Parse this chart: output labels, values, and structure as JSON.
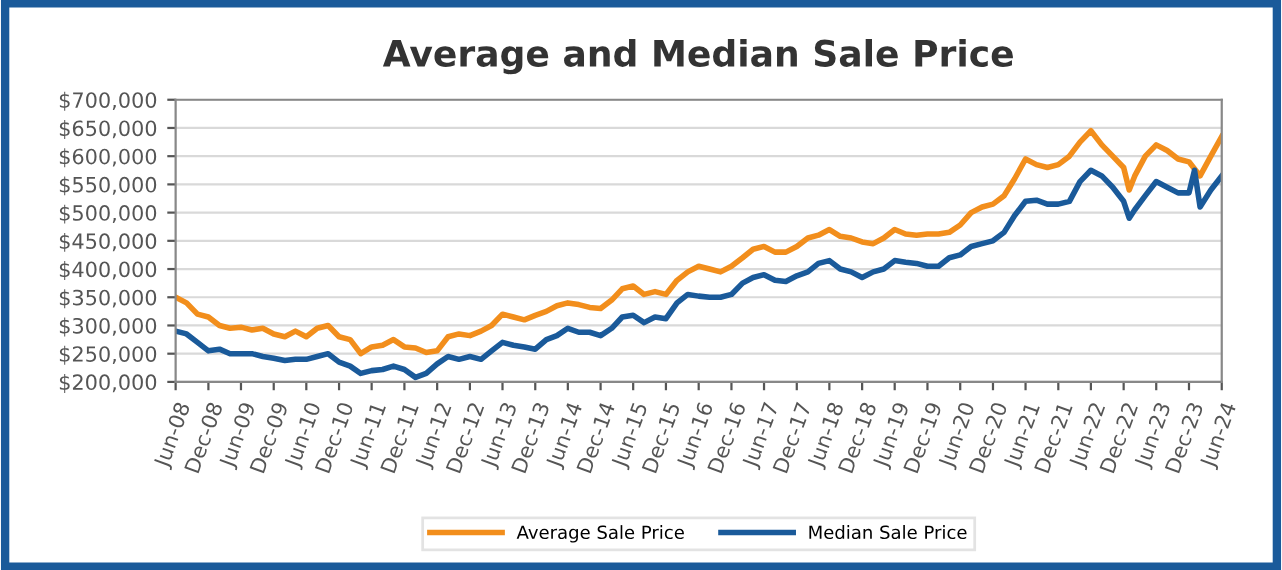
{
  "chart_data": {
    "type": "line",
    "title": "Average and Median Sale Price",
    "ylim": [
      200000,
      700000
    ],
    "yticks": [
      {
        "value": 200000,
        "label": "$200,000"
      },
      {
        "value": 250000,
        "label": "$250,000"
      },
      {
        "value": 300000,
        "label": "$300,000"
      },
      {
        "value": 350000,
        "label": "$350,000"
      },
      {
        "value": 400000,
        "label": "$400,000"
      },
      {
        "value": 450000,
        "label": "$450,000"
      },
      {
        "value": 500000,
        "label": "$500,000"
      },
      {
        "value": 550000,
        "label": "$550,000"
      },
      {
        "value": 600000,
        "label": "$600,000"
      },
      {
        "value": 650000,
        "label": "$650,000"
      },
      {
        "value": 700000,
        "label": "$700,000"
      }
    ],
    "xlim": [
      "2008-06",
      "2024-06"
    ],
    "xticks": [
      {
        "value": "2008-06",
        "label": "Jun-08"
      },
      {
        "value": "2008-12",
        "label": "Dec-08"
      },
      {
        "value": "2009-06",
        "label": "Jun-09"
      },
      {
        "value": "2009-12",
        "label": "Dec-09"
      },
      {
        "value": "2010-06",
        "label": "Jun-10"
      },
      {
        "value": "2010-12",
        "label": "Dec-10"
      },
      {
        "value": "2011-06",
        "label": "Jun-11"
      },
      {
        "value": "2011-12",
        "label": "Dec-11"
      },
      {
        "value": "2012-06",
        "label": "Jun-12"
      },
      {
        "value": "2012-12",
        "label": "Dec-12"
      },
      {
        "value": "2013-06",
        "label": "Jun-13"
      },
      {
        "value": "2013-12",
        "label": "Dec-13"
      },
      {
        "value": "2014-06",
        "label": "Jun-14"
      },
      {
        "value": "2014-12",
        "label": "Dec-14"
      },
      {
        "value": "2015-06",
        "label": "Jun-15"
      },
      {
        "value": "2015-12",
        "label": "Dec-15"
      },
      {
        "value": "2016-06",
        "label": "Jun-16"
      },
      {
        "value": "2016-12",
        "label": "Dec-16"
      },
      {
        "value": "2017-06",
        "label": "Jun-17"
      },
      {
        "value": "2017-12",
        "label": "Dec-17"
      },
      {
        "value": "2018-06",
        "label": "Jun-18"
      },
      {
        "value": "2018-12",
        "label": "Dec-18"
      },
      {
        "value": "2019-06",
        "label": "Jun-19"
      },
      {
        "value": "2019-12",
        "label": "Dec-19"
      },
      {
        "value": "2020-06",
        "label": "Jun-20"
      },
      {
        "value": "2020-12",
        "label": "Dec-20"
      },
      {
        "value": "2021-06",
        "label": "Jun-21"
      },
      {
        "value": "2021-12",
        "label": "Dec-21"
      },
      {
        "value": "2022-06",
        "label": "Jun-22"
      },
      {
        "value": "2022-12",
        "label": "Dec-22"
      },
      {
        "value": "2023-06",
        "label": "Jun-23"
      },
      {
        "value": "2023-12",
        "label": "Dec-23"
      },
      {
        "value": "2024-06",
        "label": "Jun-24"
      }
    ],
    "grid": "y",
    "legend": "bottom",
    "marker": "none",
    "line_style": "solid",
    "series": [
      {
        "name": "Average Sale Price",
        "color": "#f28e1c",
        "x": [
          "2008-06",
          "2008-08",
          "2008-10",
          "2008-12",
          "2009-02",
          "2009-04",
          "2009-06",
          "2009-08",
          "2009-10",
          "2009-12",
          "2010-02",
          "2010-04",
          "2010-06",
          "2010-08",
          "2010-10",
          "2010-12",
          "2011-02",
          "2011-04",
          "2011-06",
          "2011-08",
          "2011-10",
          "2011-12",
          "2012-02",
          "2012-04",
          "2012-06",
          "2012-08",
          "2012-10",
          "2012-12",
          "2013-02",
          "2013-04",
          "2013-06",
          "2013-08",
          "2013-10",
          "2013-12",
          "2014-02",
          "2014-04",
          "2014-06",
          "2014-08",
          "2014-10",
          "2014-12",
          "2015-02",
          "2015-04",
          "2015-06",
          "2015-08",
          "2015-10",
          "2015-12",
          "2016-02",
          "2016-04",
          "2016-06",
          "2016-08",
          "2016-10",
          "2016-12",
          "2017-02",
          "2017-04",
          "2017-06",
          "2017-08",
          "2017-10",
          "2017-12",
          "2018-02",
          "2018-04",
          "2018-06",
          "2018-08",
          "2018-10",
          "2018-12",
          "2019-02",
          "2019-04",
          "2019-06",
          "2019-08",
          "2019-10",
          "2019-12",
          "2020-02",
          "2020-04",
          "2020-06",
          "2020-08",
          "2020-10",
          "2020-12",
          "2021-02",
          "2021-04",
          "2021-06",
          "2021-08",
          "2021-10",
          "2021-12",
          "2022-02",
          "2022-04",
          "2022-06",
          "2022-08",
          "2022-10",
          "2022-12",
          "2023-01",
          "2023-02",
          "2023-04",
          "2023-06",
          "2023-08",
          "2023-10",
          "2023-12",
          "2024-02",
          "2024-04",
          "2024-06"
        ],
        "values": [
          350000,
          340000,
          320000,
          315000,
          300000,
          295000,
          297000,
          292000,
          295000,
          285000,
          280000,
          290000,
          280000,
          295000,
          300000,
          280000,
          275000,
          250000,
          262000,
          265000,
          275000,
          262000,
          260000,
          252000,
          255000,
          280000,
          285000,
          282000,
          290000,
          300000,
          320000,
          315000,
          310000,
          318000,
          325000,
          335000,
          340000,
          337000,
          332000,
          330000,
          345000,
          365000,
          370000,
          355000,
          360000,
          355000,
          380000,
          395000,
          405000,
          400000,
          395000,
          405000,
          420000,
          435000,
          440000,
          430000,
          430000,
          440000,
          455000,
          460000,
          470000,
          458000,
          455000,
          448000,
          445000,
          455000,
          470000,
          462000,
          460000,
          462000,
          462000,
          465000,
          478000,
          500000,
          510000,
          515000,
          530000,
          560000,
          595000,
          585000,
          580000,
          585000,
          600000,
          625000,
          645000,
          620000,
          600000,
          580000,
          540000,
          565000,
          600000,
          620000,
          610000,
          595000,
          590000,
          565000,
          600000,
          635000
        ]
      },
      {
        "name": "Median Sale Price",
        "color": "#1a5a9a",
        "x": [
          "2008-06",
          "2008-08",
          "2008-10",
          "2008-12",
          "2009-02",
          "2009-04",
          "2009-06",
          "2009-08",
          "2009-10",
          "2009-12",
          "2010-02",
          "2010-04",
          "2010-06",
          "2010-08",
          "2010-10",
          "2010-12",
          "2011-02",
          "2011-04",
          "2011-06",
          "2011-08",
          "2011-10",
          "2011-12",
          "2012-02",
          "2012-04",
          "2012-06",
          "2012-08",
          "2012-10",
          "2012-12",
          "2013-02",
          "2013-04",
          "2013-06",
          "2013-08",
          "2013-10",
          "2013-12",
          "2014-02",
          "2014-04",
          "2014-06",
          "2014-08",
          "2014-10",
          "2014-12",
          "2015-02",
          "2015-04",
          "2015-06",
          "2015-08",
          "2015-10",
          "2015-12",
          "2016-02",
          "2016-04",
          "2016-06",
          "2016-08",
          "2016-10",
          "2016-12",
          "2017-02",
          "2017-04",
          "2017-06",
          "2017-08",
          "2017-10",
          "2017-12",
          "2018-02",
          "2018-04",
          "2018-06",
          "2018-08",
          "2018-10",
          "2018-12",
          "2019-02",
          "2019-04",
          "2019-06",
          "2019-08",
          "2019-10",
          "2019-12",
          "2020-02",
          "2020-04",
          "2020-06",
          "2020-08",
          "2020-10",
          "2020-12",
          "2021-02",
          "2021-04",
          "2021-06",
          "2021-08",
          "2021-10",
          "2021-12",
          "2022-02",
          "2022-04",
          "2022-06",
          "2022-08",
          "2022-10",
          "2022-12",
          "2023-01",
          "2023-02",
          "2023-04",
          "2023-06",
          "2023-08",
          "2023-10",
          "2023-12",
          "2024-01",
          "2024-02",
          "2024-04",
          "2024-06"
        ],
        "values": [
          290000,
          285000,
          270000,
          255000,
          258000,
          250000,
          250000,
          250000,
          245000,
          242000,
          238000,
          240000,
          240000,
          245000,
          250000,
          235000,
          228000,
          215000,
          220000,
          222000,
          228000,
          222000,
          208000,
          215000,
          232000,
          245000,
          240000,
          245000,
          240000,
          255000,
          270000,
          265000,
          262000,
          258000,
          275000,
          282000,
          295000,
          288000,
          288000,
          282000,
          295000,
          315000,
          318000,
          305000,
          315000,
          312000,
          340000,
          355000,
          352000,
          350000,
          350000,
          355000,
          375000,
          385000,
          390000,
          380000,
          378000,
          388000,
          395000,
          410000,
          415000,
          400000,
          395000,
          385000,
          395000,
          400000,
          415000,
          412000,
          410000,
          405000,
          405000,
          420000,
          425000,
          440000,
          445000,
          450000,
          465000,
          495000,
          520000,
          522000,
          515000,
          515000,
          520000,
          555000,
          575000,
          565000,
          545000,
          520000,
          490000,
          505000,
          530000,
          555000,
          545000,
          535000,
          535000,
          575000,
          510000,
          540000,
          565000
        ]
      }
    ]
  }
}
